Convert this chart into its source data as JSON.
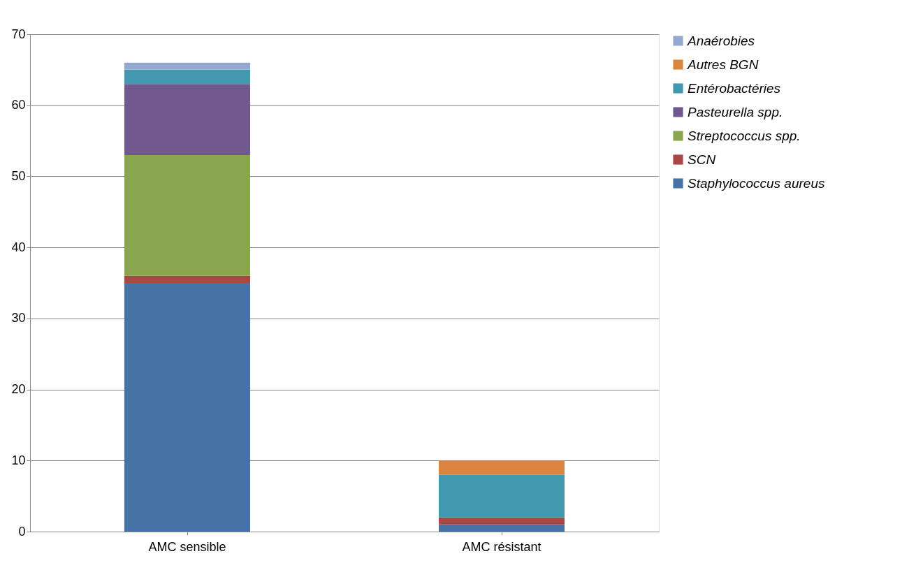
{
  "chart_data": {
    "type": "bar",
    "stacked": true,
    "categories": [
      "AMC sensible",
      "AMC résistant"
    ],
    "series": [
      {
        "name": "Staphylococcus aureus",
        "color": "#4572a7",
        "values": [
          35,
          1
        ]
      },
      {
        "name": "SCN",
        "color": "#aa4643",
        "values": [
          1,
          1
        ]
      },
      {
        "name": "Streptococcus spp.",
        "color": "#89a54e",
        "values": [
          17,
          0
        ]
      },
      {
        "name": "Pasteurella spp.",
        "color": "#71588f",
        "values": [
          10,
          0
        ]
      },
      {
        "name": "Entérobactéries",
        "color": "#4198af",
        "values": [
          2,
          6
        ]
      },
      {
        "name": "Autres BGN",
        "color": "#db843d",
        "values": [
          0,
          2
        ]
      },
      {
        "name": "Anaérobies",
        "color": "#93a9cf",
        "values": [
          1,
          0
        ]
      }
    ],
    "ylim": [
      0,
      70
    ],
    "yticks": [
      0,
      10,
      20,
      30,
      40,
      50,
      60,
      70
    ],
    "grid": "y",
    "legend": "right"
  }
}
